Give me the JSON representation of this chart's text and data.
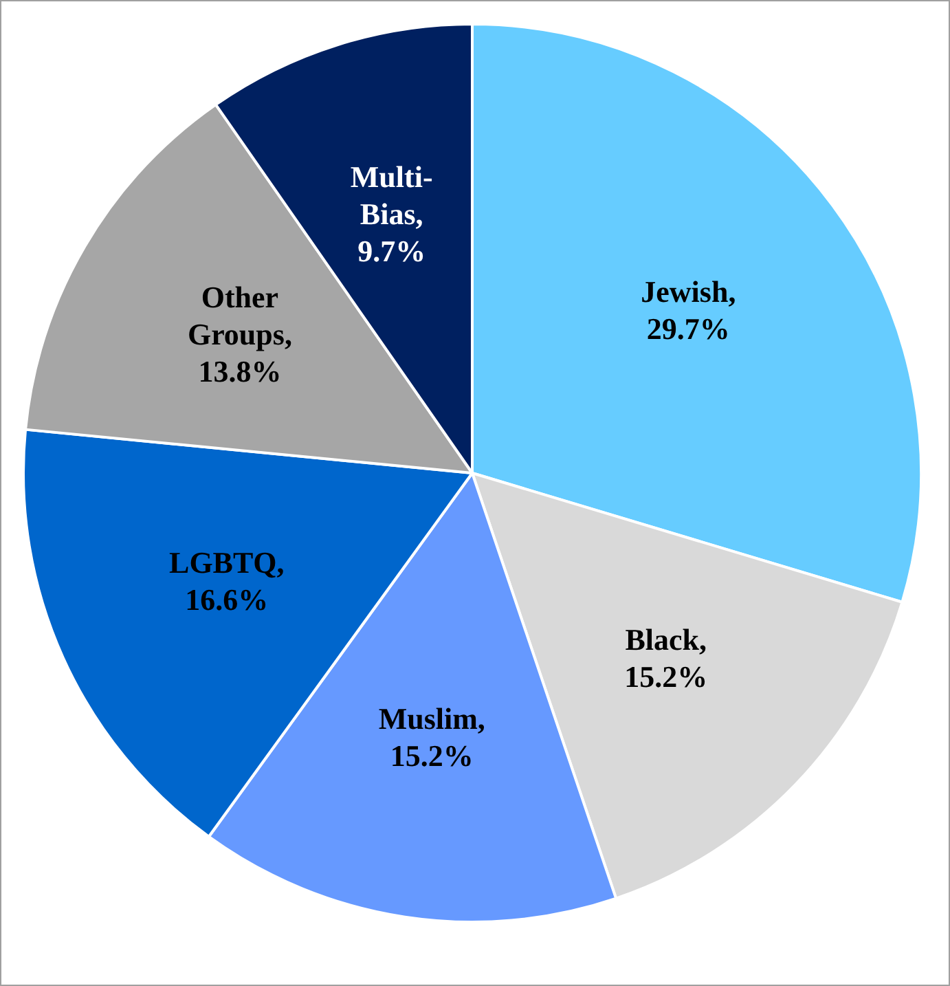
{
  "chart_data": {
    "type": "pie",
    "categories": [
      "Jewish",
      "Black",
      "Muslim",
      "LGBTQ",
      "Other Groups",
      "Multi-Bias"
    ],
    "values": [
      29.7,
      15.2,
      15.2,
      16.6,
      13.8,
      9.7
    ],
    "colors": [
      "#66ccff",
      "#d9d9d9",
      "#6699ff",
      "#0066cc",
      "#a6a6a6",
      "#002060"
    ],
    "value_labels": [
      ", 29.7%",
      ", 15.2%",
      ", 15.2%",
      ", 16.6%",
      ", 13.8%",
      ", 9.7%"
    ],
    "legend": false
  }
}
